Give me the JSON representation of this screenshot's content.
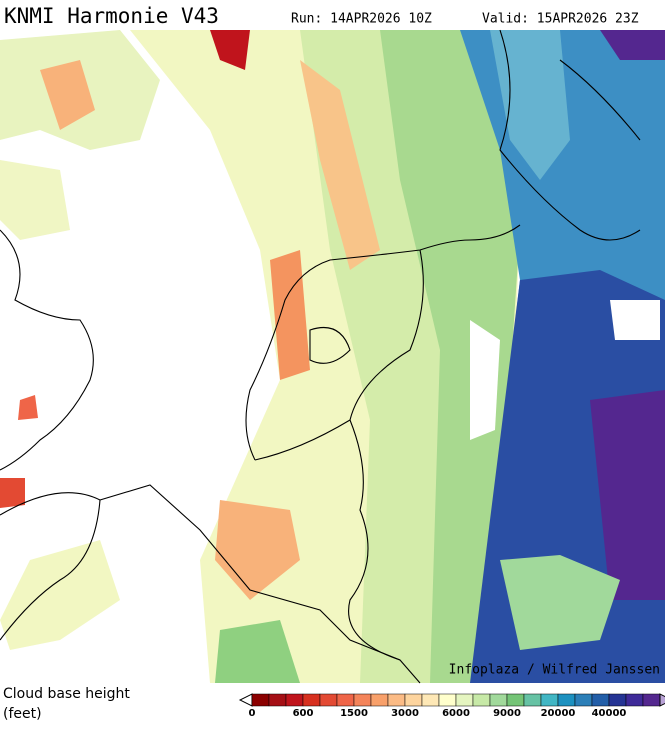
{
  "header": {
    "title": "KNMI Harmonie V43",
    "run": "Run: 14APR2026 10Z",
    "valid": "Valid: 15APR2026 23Z"
  },
  "credit": "Infoplaza / Wilfred Janssen",
  "legend": {
    "label": "Cloud base height",
    "unit": "(feet)",
    "ticks": [
      0,
      600,
      1500,
      3000,
      6000,
      9000,
      20000,
      40000
    ],
    "colors": [
      "#8b0000",
      "#a50f15",
      "#c0141c",
      "#d7301f",
      "#e34a33",
      "#ef6548",
      "#f4845a",
      "#f8a06a",
      "#fbbb85",
      "#fdd49e",
      "#fee8b6",
      "#ffffcc",
      "#e5f5c0",
      "#c7e9a7",
      "#a1d99b",
      "#74c476",
      "#66c2a4",
      "#41b6c4",
      "#1d91c0",
      "#2c7fb8",
      "#225ea8",
      "#253494",
      "#3f2a99",
      "#54278f"
    ]
  }
}
